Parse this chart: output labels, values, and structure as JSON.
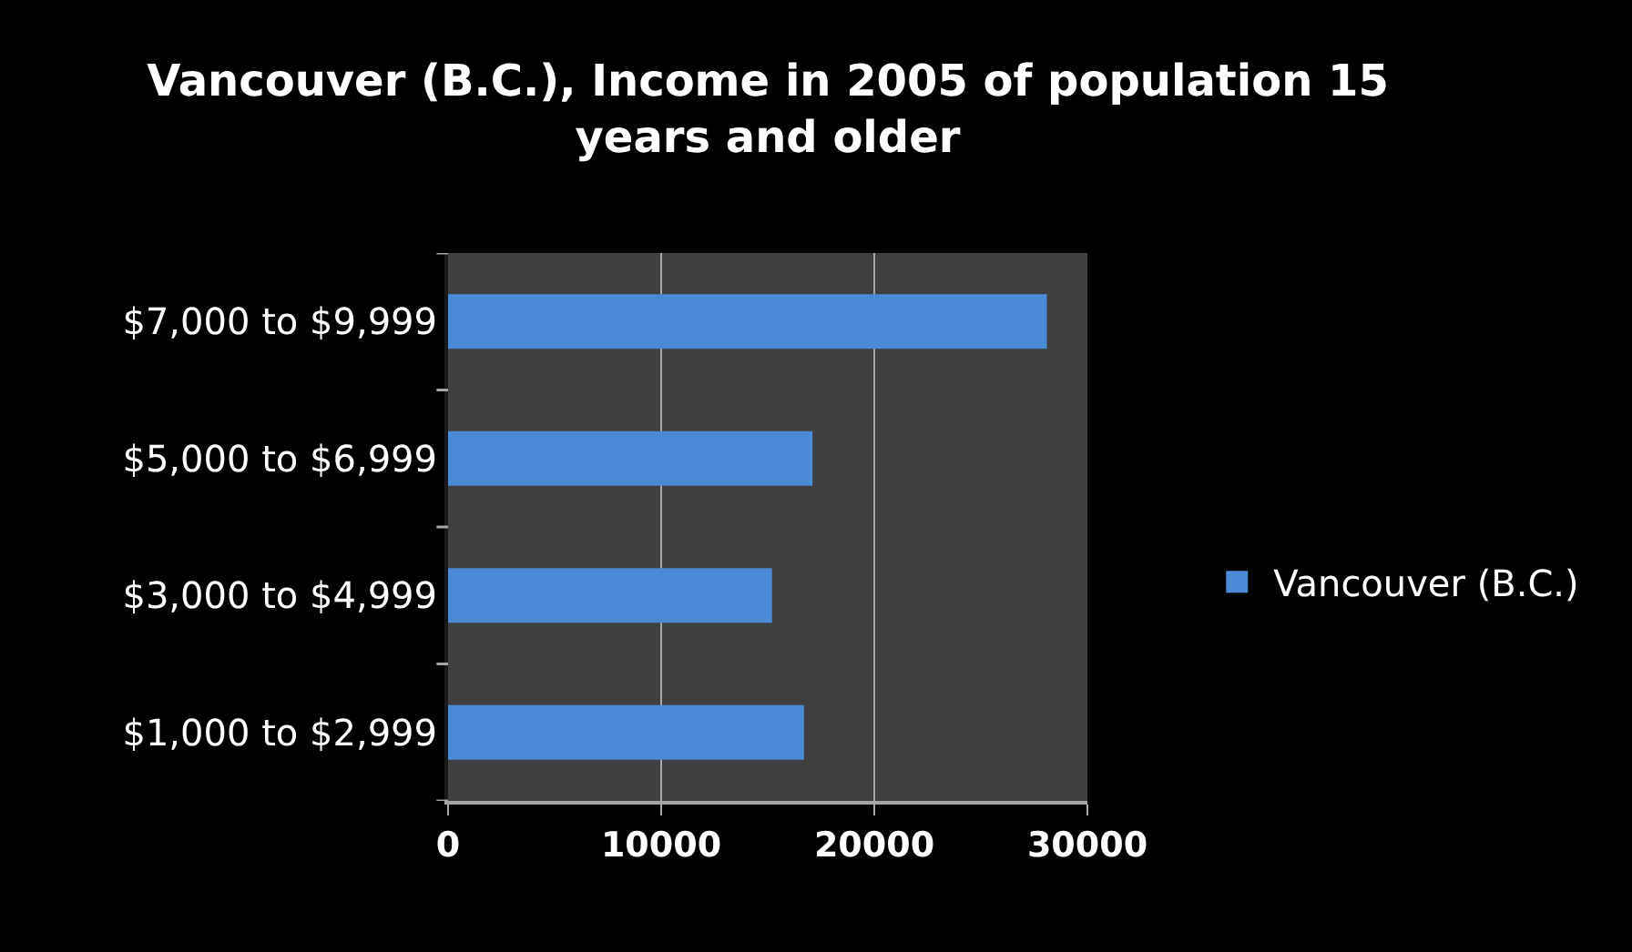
{
  "chart_data": {
    "type": "bar",
    "orientation": "horizontal",
    "title": "Vancouver (B.C.), Income in 2005 of population 15 years and older",
    "categories": [
      "$7,000 to $9,999",
      "$5,000 to $6,999",
      "$3,000 to $4,999",
      "$1,000 to $2,999"
    ],
    "series": [
      {
        "name": "Vancouver (B.C.)",
        "color": "#4a8ad6",
        "values": [
          28100,
          17100,
          15200,
          16700
        ]
      }
    ],
    "xlim": [
      0,
      30000
    ],
    "xticks": [
      0,
      10000,
      20000,
      30000
    ],
    "grid": "x",
    "legend": "right"
  }
}
